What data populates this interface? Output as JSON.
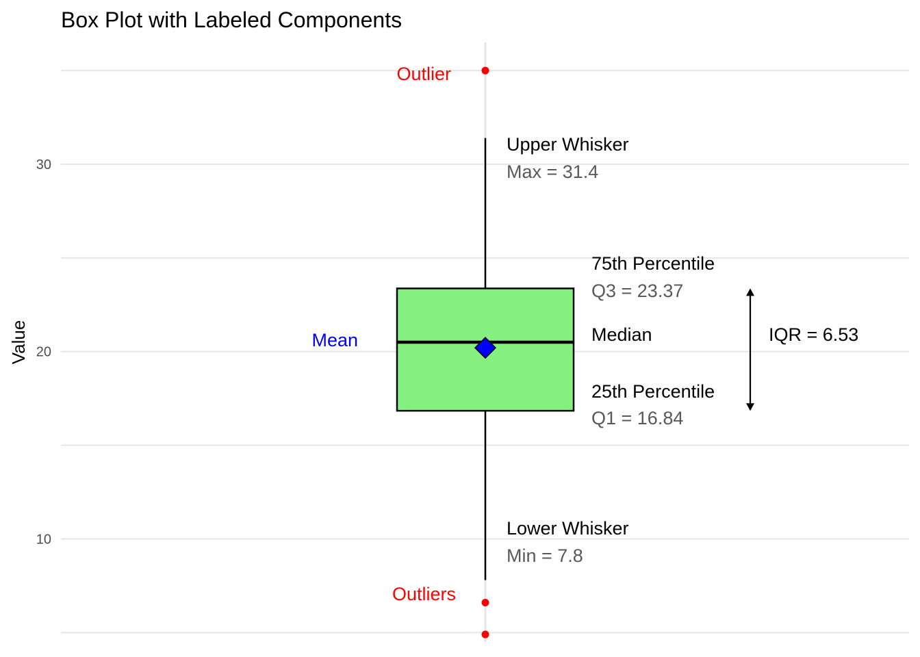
{
  "chart_data": {
    "type": "box",
    "title": "Box Plot with Labeled Components",
    "xlabel": "",
    "ylabel": "Value",
    "ylim": [
      4.5,
      36.5
    ],
    "yticks": [
      10,
      20,
      30
    ],
    "grid": true,
    "stats": {
      "min": 7.8,
      "q1": 16.84,
      "median": 20.5,
      "mean": 20.2,
      "q3": 23.37,
      "max": 31.4,
      "iqr": 6.53
    },
    "outliers": [
      35,
      6.6,
      4.9
    ],
    "colors": {
      "box_fill": "#85ef80",
      "mean_marker": "#0000ff",
      "outlier": "#ff0000",
      "grid": "#e6e6e6"
    },
    "annotations": {
      "outlier_top": "Outlier",
      "outliers_bottom": "Outliers",
      "upper_whisker": "Upper Whisker",
      "max_label": "Max = 31.4",
      "q3_title": "75th Percentile",
      "q3_label": "Q3 = 23.37",
      "median": "Median",
      "q1_title": "25th Percentile",
      "q1_label": "Q1 = 16.84",
      "iqr_label": "IQR = 6.53",
      "mean": "Mean",
      "lower_whisker": "Lower Whisker",
      "min_label": "Min = 7.8"
    }
  }
}
